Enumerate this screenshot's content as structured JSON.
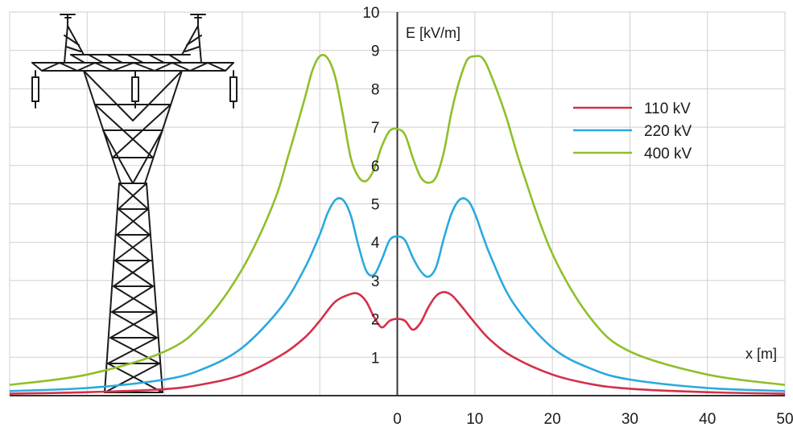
{
  "chart_data": {
    "type": "line",
    "xlabel": "x [m]",
    "ylabel": "E [kV/m]",
    "xlim": [
      -50,
      50
    ],
    "ylim": [
      0,
      10
    ],
    "x_ticks": [
      0,
      10,
      20,
      30,
      40,
      50
    ],
    "y_ticks": [
      1,
      2,
      3,
      4,
      5,
      6,
      7,
      8,
      9,
      10
    ],
    "grid": true,
    "legend_position": "top-right",
    "series": [
      {
        "name": "110 kV",
        "color": "#d2304a",
        "points": [
          [
            -50,
            0.05
          ],
          [
            -40,
            0.09
          ],
          [
            -30,
            0.17
          ],
          [
            -25,
            0.3
          ],
          [
            -20,
            0.55
          ],
          [
            -15,
            1.05
          ],
          [
            -12,
            1.5
          ],
          [
            -10,
            1.95
          ],
          [
            -8,
            2.45
          ],
          [
            -6,
            2.65
          ],
          [
            -5,
            2.65
          ],
          [
            -4,
            2.45
          ],
          [
            -3,
            2.05
          ],
          [
            -2,
            1.78
          ],
          [
            -1,
            1.95
          ],
          [
            0,
            2.0
          ],
          [
            1,
            1.95
          ],
          [
            2,
            1.72
          ],
          [
            3,
            1.9
          ],
          [
            4,
            2.3
          ],
          [
            5,
            2.6
          ],
          [
            6,
            2.7
          ],
          [
            7,
            2.62
          ],
          [
            8,
            2.4
          ],
          [
            10,
            1.9
          ],
          [
            12,
            1.45
          ],
          [
            15,
            1.0
          ],
          [
            20,
            0.55
          ],
          [
            25,
            0.3
          ],
          [
            30,
            0.18
          ],
          [
            40,
            0.09
          ],
          [
            50,
            0.05
          ]
        ]
      },
      {
        "name": "220 kV",
        "color": "#2aa9e0",
        "points": [
          [
            -50,
            0.12
          ],
          [
            -40,
            0.2
          ],
          [
            -30,
            0.42
          ],
          [
            -25,
            0.7
          ],
          [
            -20,
            1.25
          ],
          [
            -15,
            2.3
          ],
          [
            -12,
            3.3
          ],
          [
            -10,
            4.2
          ],
          [
            -9,
            4.75
          ],
          [
            -8,
            5.1
          ],
          [
            -7,
            5.1
          ],
          [
            -6,
            4.7
          ],
          [
            -5,
            3.9
          ],
          [
            -4,
            3.25
          ],
          [
            -3,
            3.15
          ],
          [
            -2,
            3.55
          ],
          [
            -1,
            4.05
          ],
          [
            0,
            4.15
          ],
          [
            1,
            4.05
          ],
          [
            2,
            3.6
          ],
          [
            3,
            3.25
          ],
          [
            4,
            3.1
          ],
          [
            5,
            3.35
          ],
          [
            6,
            4.1
          ],
          [
            7,
            4.75
          ],
          [
            8,
            5.1
          ],
          [
            9,
            5.1
          ],
          [
            10,
            4.75
          ],
          [
            12,
            3.65
          ],
          [
            15,
            2.4
          ],
          [
            20,
            1.25
          ],
          [
            25,
            0.7
          ],
          [
            30,
            0.42
          ],
          [
            40,
            0.2
          ],
          [
            50,
            0.12
          ]
        ]
      },
      {
        "name": "400 kV",
        "color": "#8fbf2a",
        "points": [
          [
            -50,
            0.28
          ],
          [
            -40,
            0.55
          ],
          [
            -30,
            1.15
          ],
          [
            -25,
            1.9
          ],
          [
            -20,
            3.3
          ],
          [
            -16,
            5.0
          ],
          [
            -14,
            6.3
          ],
          [
            -12,
            7.7
          ],
          [
            -11,
            8.45
          ],
          [
            -10,
            8.85
          ],
          [
            -9,
            8.8
          ],
          [
            -8,
            8.3
          ],
          [
            -7,
            7.3
          ],
          [
            -6,
            6.2
          ],
          [
            -5,
            5.7
          ],
          [
            -4,
            5.6
          ],
          [
            -3,
            5.9
          ],
          [
            -2,
            6.5
          ],
          [
            -1,
            6.9
          ],
          [
            0,
            6.95
          ],
          [
            1,
            6.8
          ],
          [
            2,
            6.2
          ],
          [
            3,
            5.7
          ],
          [
            4,
            5.55
          ],
          [
            5,
            5.7
          ],
          [
            6,
            6.35
          ],
          [
            7,
            7.4
          ],
          [
            8,
            8.2
          ],
          [
            9,
            8.75
          ],
          [
            10,
            8.85
          ],
          [
            11,
            8.8
          ],
          [
            12,
            8.4
          ],
          [
            14,
            7.3
          ],
          [
            16,
            5.95
          ],
          [
            20,
            3.7
          ],
          [
            25,
            2.0
          ],
          [
            30,
            1.15
          ],
          [
            40,
            0.55
          ],
          [
            50,
            0.28
          ]
        ]
      }
    ]
  }
}
